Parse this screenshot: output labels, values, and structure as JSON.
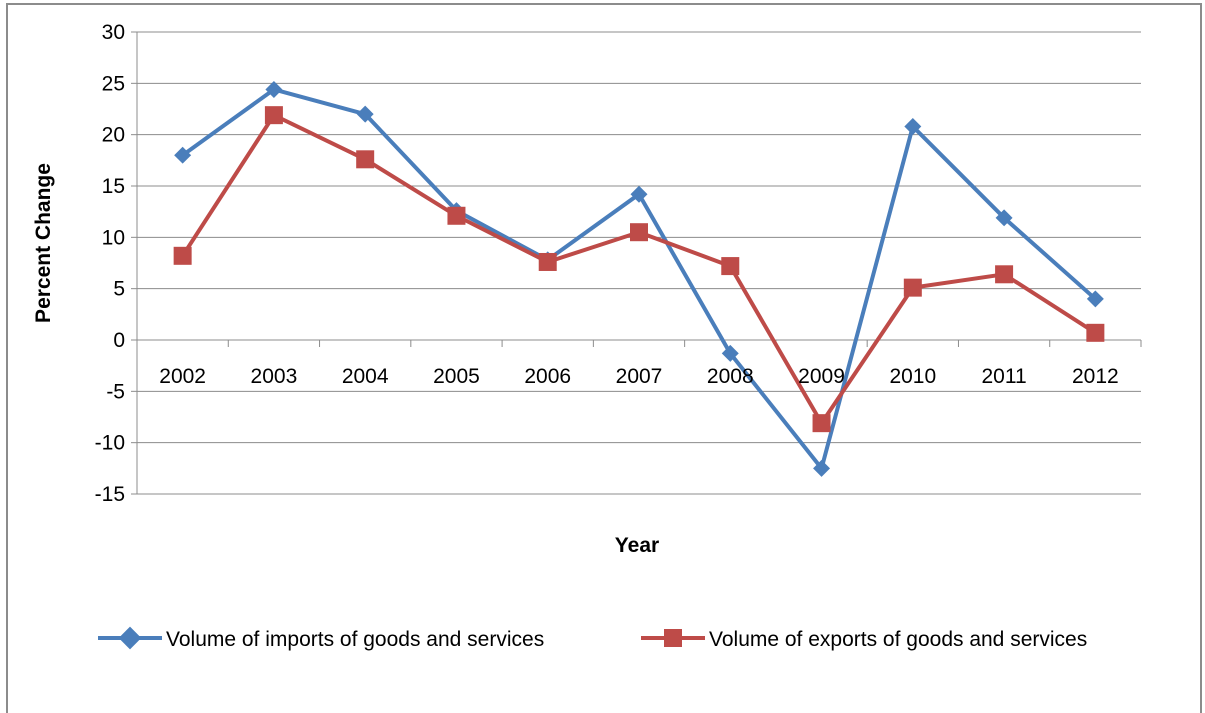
{
  "chart_data": {
    "type": "line",
    "title": "",
    "xlabel": "Year",
    "ylabel": "Percent Change",
    "categories": [
      "2002",
      "2003",
      "2004",
      "2005",
      "2006",
      "2007",
      "2008",
      "2009",
      "2010",
      "2011",
      "2012"
    ],
    "ylim": [
      -15,
      30
    ],
    "ytick_step": 5,
    "grid": true,
    "legend_position": "bottom",
    "series": [
      {
        "name": "Volume of imports of goods and services",
        "values": [
          18.0,
          24.4,
          22.0,
          12.6,
          7.8,
          14.2,
          -1.3,
          -12.5,
          20.8,
          11.9,
          4.0
        ],
        "color": "#4a7ebb",
        "marker": "diamond"
      },
      {
        "name": "Volume of exports of goods and services",
        "values": [
          8.2,
          21.9,
          17.6,
          12.1,
          7.6,
          10.5,
          7.2,
          -8.1,
          5.1,
          6.4,
          0.7
        ],
        "color": "#be4b48",
        "marker": "square"
      }
    ]
  }
}
